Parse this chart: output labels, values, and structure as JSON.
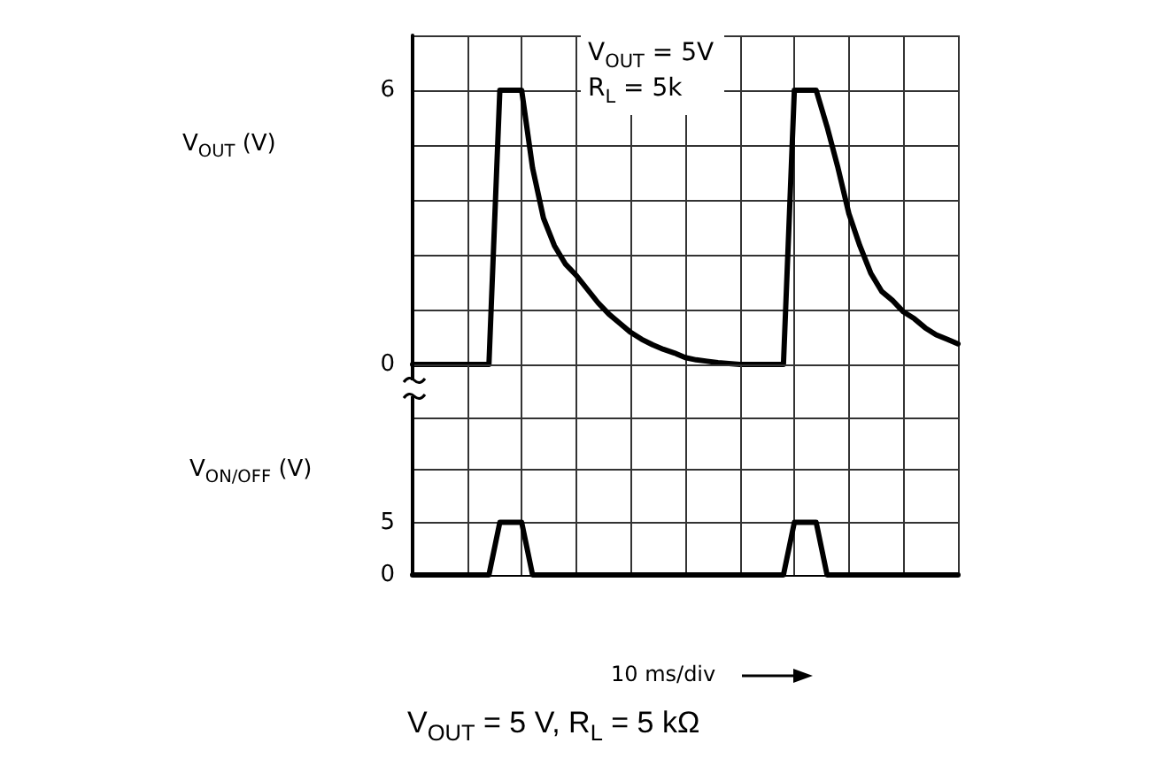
{
  "chart_data": [
    {
      "type": "line",
      "ylabel": "V$_{OUT}$ (V)",
      "annotations": [
        "V$_{OUT}$ = 5V\nR$_{L}$ = 5k"
      ],
      "categories": [
        null,
        null,
        null,
        null,
        null,
        null,
        null,
        null,
        null,
        null,
        null,
        null,
        null,
        null,
        null,
        null,
        null,
        null,
        null,
        null,
        null,
        null,
        null,
        null,
        null,
        null,
        null,
        null,
        null,
        null,
        null,
        null,
        null,
        null,
        null,
        null,
        null,
        null,
        null,
        null,
        null,
        null,
        null,
        null,
        null,
        null,
        null,
        null,
        null,
        null,
        null
      ],
      "series": [
        {
          "color": "#000000",
          "values": [
            0,
            0,
            0,
            0,
            0,
            0,
            0,
            0,
            6,
            6,
            6,
            4.3,
            3.2,
            2.6,
            2.2,
            1.95,
            1.65,
            1.35,
            1.1,
            0.9,
            0.7,
            0.55,
            0.43,
            0.33,
            0.25,
            0.15,
            0.1,
            0.07,
            0.04,
            0.02,
            0,
            0,
            0,
            0,
            0,
            6,
            6,
            6,
            5.2,
            4.3,
            3.3,
            2.6,
            2.0,
            1.6,
            1.4,
            1.15,
            1.0,
            0.8,
            0.65,
            0.55,
            0.45
          ]
        }
      ],
      "ylim": [
        0,
        7.2
      ],
      "yticks": [
        0,
        {
          "value": 1.2,
          "label": null
        },
        {
          "value": 2.4,
          "label": null
        },
        {
          "value": 3.6,
          "label": null
        },
        {
          "value": 4.8,
          "label": null
        },
        6,
        {
          "value": 7.2,
          "label": null
        }
      ],
      "tick_labels": "y",
      "grid": true,
      "line_style": "solid"
    },
    {
      "type": "line",
      "ylabel": "V$_{ON/OFF}$ (V)",
      "annotations": [
        "10 ms/div",
        "V$_{OUT}$ = 5 V, R$_{L}$ = 5 kΩ"
      ],
      "categories": [
        null,
        null,
        null,
        null,
        null,
        null,
        null,
        null,
        null,
        null,
        null,
        null,
        null,
        null,
        null,
        null,
        null,
        null,
        null,
        null,
        null,
        null,
        null,
        null,
        null,
        null,
        null,
        null,
        null,
        null,
        null,
        null,
        null,
        null,
        null,
        null,
        null,
        null,
        null,
        null,
        null,
        null,
        null,
        null,
        null,
        null,
        null,
        null,
        null,
        null,
        null
      ],
      "series": [
        {
          "color": "#000000",
          "values": [
            0,
            0,
            0,
            0,
            0,
            0,
            0,
            0,
            5,
            5,
            5,
            0,
            0,
            0,
            0,
            0,
            0,
            0,
            0,
            0,
            0,
            0,
            0,
            0,
            0,
            0,
            0,
            0,
            0,
            0,
            0,
            0,
            0,
            0,
            0,
            5,
            5,
            5,
            0,
            0,
            0,
            0,
            0,
            0,
            0,
            0,
            0,
            0,
            0,
            0,
            0
          ]
        }
      ],
      "ylim": [
        0,
        20
      ],
      "yticks": [
        0,
        5,
        {
          "value": 10,
          "label": null
        },
        {
          "value": 15,
          "label": null
        },
        {
          "value": 20,
          "label": null
        }
      ],
      "tick_labels": "y",
      "grid": true,
      "line_style": "solid"
    }
  ]
}
